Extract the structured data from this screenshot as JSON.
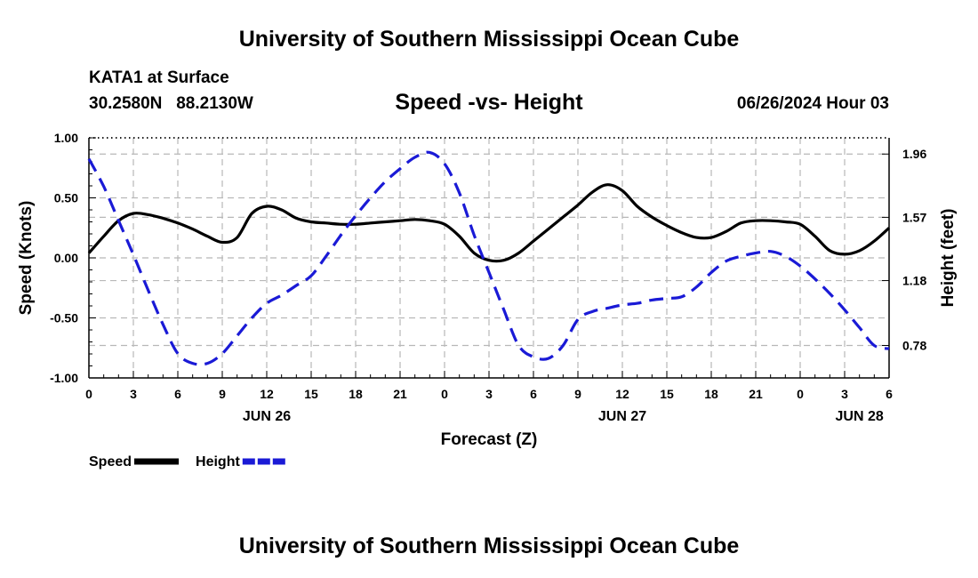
{
  "header": {
    "title": "University of Southern Mississippi Ocean Cube",
    "station": "KATA1 at Surface",
    "coords": "30.2580N   88.2130W",
    "subtitle": "Speed -vs- Height",
    "datetime": "06/26/2024 Hour 03"
  },
  "footer": {
    "title": "University of Southern Mississippi Ocean Cube"
  },
  "chart_data": {
    "type": "line",
    "title": "Speed -vs- Height",
    "xlabel": "Forecast (Z)",
    "ylabel": "Speed (Knots)",
    "ylabel_right": "Height (feet)",
    "x_range": [
      0,
      54
    ],
    "ylim": [
      -1.0,
      1.0
    ],
    "ylim_right": [
      0.58,
      2.06
    ],
    "x_ticks": [
      0,
      3,
      6,
      9,
      12,
      15,
      18,
      21,
      24,
      27,
      30,
      33,
      36,
      39,
      42,
      45,
      48,
      51,
      54
    ],
    "x_tick_labels": [
      "0",
      "3",
      "6",
      "9",
      "12",
      "15",
      "18",
      "21",
      "0",
      "3",
      "6",
      "9",
      "12",
      "15",
      "18",
      "21",
      "0",
      "3",
      "6"
    ],
    "date_labels": [
      {
        "x": 12,
        "label": "JUN 26"
      },
      {
        "x": 36,
        "label": "JUN 27"
      },
      {
        "x": 52,
        "label": "JUN 28"
      }
    ],
    "y_ticks_left": [
      -1.0,
      -0.5,
      0.0,
      0.5,
      1.0
    ],
    "y_tick_labels_left": [
      "-1.00",
      "-0.50",
      "0.00",
      "0.50",
      "1.00"
    ],
    "y_ticks_right": [
      0.78,
      1.18,
      1.57,
      1.96
    ],
    "y_tick_labels_right": [
      "0.78",
      "1.18",
      "1.57",
      "1.96"
    ],
    "grid": true,
    "series": [
      {
        "name": "Speed",
        "axis": "left",
        "color": "#000000",
        "style": "solid",
        "x": [
          0,
          1,
          2,
          3,
          4,
          5,
          6,
          7,
          8,
          9,
          10,
          11,
          12,
          13,
          14,
          15,
          16,
          17,
          18,
          19,
          20,
          21,
          22,
          23,
          24,
          25,
          26,
          27,
          28,
          29,
          30,
          31,
          32,
          33,
          34,
          35,
          36,
          37,
          38,
          39,
          40,
          41,
          42,
          43,
          44,
          45,
          46,
          47,
          48,
          49,
          50,
          51,
          52,
          53,
          54
        ],
        "values": [
          0.04,
          0.18,
          0.31,
          0.37,
          0.36,
          0.33,
          0.29,
          0.24,
          0.18,
          0.13,
          0.17,
          0.37,
          0.43,
          0.4,
          0.33,
          0.3,
          0.29,
          0.28,
          0.28,
          0.29,
          0.3,
          0.31,
          0.32,
          0.31,
          0.28,
          0.18,
          0.04,
          -0.02,
          -0.02,
          0.04,
          0.14,
          0.24,
          0.34,
          0.44,
          0.55,
          0.61,
          0.56,
          0.43,
          0.34,
          0.27,
          0.21,
          0.17,
          0.17,
          0.22,
          0.29,
          0.31,
          0.31,
          0.3,
          0.28,
          0.18,
          0.06,
          0.03,
          0.06,
          0.14,
          0.25
        ]
      },
      {
        "name": "Height",
        "axis": "right",
        "color": "#1a1ad6",
        "style": "dashed",
        "x": [
          0,
          1,
          2,
          3,
          4,
          5,
          6,
          7,
          8,
          9,
          10,
          11,
          12,
          13,
          14,
          15,
          16,
          17,
          18,
          19,
          20,
          21,
          22,
          23,
          24,
          25,
          26,
          27,
          28,
          29,
          30,
          31,
          32,
          33,
          34,
          35,
          36,
          37,
          38,
          39,
          40,
          41,
          42,
          43,
          44,
          45,
          46,
          47,
          48,
          49,
          50,
          51,
          52,
          53,
          54
        ],
        "values": [
          1.93,
          1.76,
          1.55,
          1.34,
          1.12,
          0.91,
          0.73,
          0.67,
          0.67,
          0.73,
          0.84,
          0.95,
          1.04,
          1.09,
          1.15,
          1.21,
          1.33,
          1.46,
          1.58,
          1.69,
          1.79,
          1.87,
          1.94,
          1.97,
          1.9,
          1.72,
          1.46,
          1.23,
          1.0,
          0.78,
          0.71,
          0.7,
          0.78,
          0.94,
          0.99,
          1.01,
          1.03,
          1.04,
          1.06,
          1.07,
          1.08,
          1.14,
          1.23,
          1.3,
          1.33,
          1.35,
          1.36,
          1.33,
          1.27,
          1.19,
          1.1,
          1.0,
          0.89,
          0.78,
          0.76
        ]
      }
    ],
    "legend": [
      {
        "label": "Speed",
        "color": "#000000",
        "style": "solid"
      },
      {
        "label": "Height",
        "color": "#1a1ad6",
        "style": "dashed"
      }
    ]
  }
}
